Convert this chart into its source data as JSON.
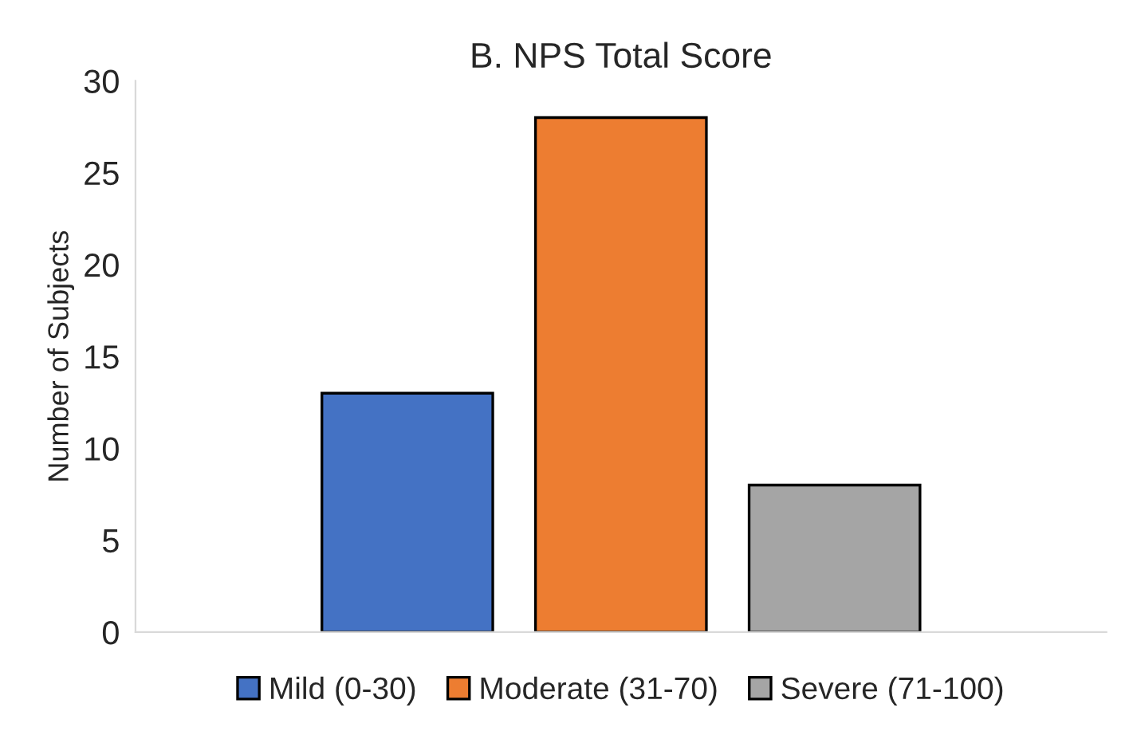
{
  "chart_data": {
    "type": "bar",
    "title": "B. NPS Total Score",
    "ylabel": "Number of Subjects",
    "categories": [
      null
    ],
    "series": [
      {
        "name": "Mild (0-30)",
        "color": "#4472c4",
        "values": [
          13
        ]
      },
      {
        "name": "Moderate (31-70)",
        "color": "#ed7d31",
        "values": [
          28
        ]
      },
      {
        "name": "Severe (71-100)",
        "color": "#a5a5a5",
        "values": [
          8
        ]
      }
    ],
    "ylim": [
      0,
      30
    ],
    "yticks": [
      0,
      5,
      10,
      15,
      20,
      25,
      30
    ],
    "grid": false,
    "legend": "bottom"
  }
}
